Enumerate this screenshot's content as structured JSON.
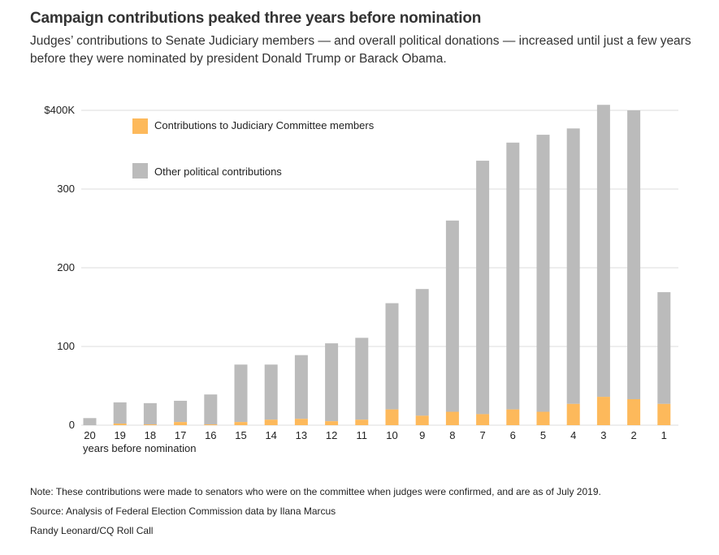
{
  "title": "Campaign contributions peaked three years before nomination",
  "subtitle": "Judges’ contributions to Senate Judiciary members — and overall political donations — increased until just a few years before they were nominated by president Donald Trump or Barack Obama.",
  "notes": {
    "note": "Note: These contributions were made to senators who were on the committee when judges were confirmed, and are as of July 2019.",
    "source": "Source: Analysis of Federal Election Commission data by Ilana Marcus",
    "credit": "Randy Leonard/CQ Roll Call"
  },
  "colors": {
    "judiciary": "#fdb95b",
    "other": "#bbbbbb",
    "grid": "#dddddd"
  },
  "chart_data": {
    "type": "bar",
    "stacked": true,
    "xlabel": "years before nomination",
    "ylabel": "",
    "ylim": [
      0,
      400
    ],
    "yticks": [
      0,
      100,
      200,
      300,
      400
    ],
    "ytick_labels": [
      "0",
      "100",
      "200",
      "300",
      "$400K"
    ],
    "categories": [
      "20",
      "19",
      "18",
      "17",
      "16",
      "15",
      "14",
      "13",
      "12",
      "11",
      "10",
      "9",
      "8",
      "7",
      "6",
      "5",
      "4",
      "3",
      "2",
      "1"
    ],
    "series": [
      {
        "name": "Contributions to Judiciary Committee members",
        "values": [
          0,
          2,
          1,
          4,
          1,
          4,
          7,
          8,
          5,
          7,
          20,
          12,
          17,
          14,
          20,
          17,
          27,
          36,
          33,
          27
        ]
      },
      {
        "name": "Other political contributions",
        "values": [
          9,
          27,
          27,
          27,
          38,
          73,
          70,
          81,
          99,
          104,
          135,
          161,
          243,
          322,
          339,
          352,
          350,
          371,
          367,
          142
        ]
      }
    ],
    "legend": "top-left",
    "grid": true
  }
}
